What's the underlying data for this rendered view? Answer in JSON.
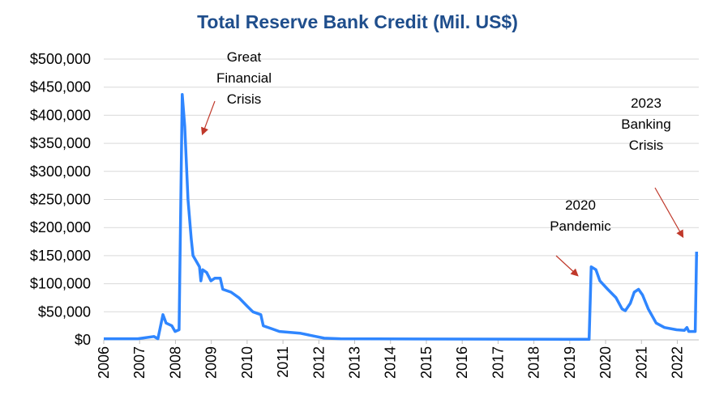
{
  "chart_data": {
    "type": "line",
    "title": "Total Reserve Bank Credit (Mil. US$)",
    "x": [
      2006.0,
      2006.95,
      2007.4,
      2007.51,
      2007.65,
      2007.74,
      2007.9,
      2007.99,
      2008.1,
      2008.19,
      2008.26,
      2008.35,
      2008.44,
      2008.49,
      2008.58,
      2008.67,
      2008.71,
      2008.76,
      2008.87,
      2008.99,
      2009.1,
      2009.25,
      2009.32,
      2009.55,
      2009.77,
      2010.0,
      2010.16,
      2010.38,
      2010.45,
      2010.68,
      2010.9,
      2011.47,
      2011.92,
      2012.15,
      2012.6,
      2018.93,
      2019.54,
      2019.6,
      2019.73,
      2019.84,
      2020.06,
      2020.29,
      2020.46,
      2020.55,
      2020.69,
      2020.8,
      2020.92,
      2021.03,
      2021.19,
      2021.41,
      2021.64,
      2021.98,
      2022.2,
      2022.27,
      2022.32,
      2022.5,
      2022.54
    ],
    "values": [
      2000,
      2000,
      6000,
      2000,
      45000,
      30000,
      25000,
      15000,
      18000,
      437000,
      380000,
      250000,
      180000,
      150000,
      140000,
      130000,
      105000,
      125000,
      120000,
      105000,
      110000,
      110000,
      90000,
      85000,
      75000,
      60000,
      50000,
      45000,
      25000,
      20000,
      15000,
      12000,
      6000,
      3000,
      2000,
      1000,
      1000,
      130000,
      125000,
      105000,
      90000,
      75000,
      55000,
      52000,
      65000,
      85000,
      90000,
      80000,
      55000,
      30000,
      22000,
      18000,
      17000,
      22000,
      15000,
      15000,
      157000
    ],
    "color": "#2f86ff",
    "xlim": [
      2006,
      2022.6
    ],
    "xticks": [
      2006,
      2007,
      2008,
      2009,
      2010,
      2011,
      2012,
      2013,
      2014,
      2015,
      2016,
      2017,
      2018,
      2019,
      2020,
      2021,
      2022
    ],
    "ylim": [
      0,
      500000
    ],
    "yticks": [
      {
        "value": 0,
        "label": "$0"
      },
      {
        "value": 50000,
        "label": "$50,000"
      },
      {
        "value": 100000,
        "label": "$100,000"
      },
      {
        "value": 150000,
        "label": "$150,000"
      },
      {
        "value": 200000,
        "label": "$200,000"
      },
      {
        "value": 250000,
        "label": "$250,000"
      },
      {
        "value": 300000,
        "label": "$300,000"
      },
      {
        "value": 350000,
        "label": "$350,000"
      },
      {
        "value": 400000,
        "label": "$400,000"
      },
      {
        "value": 450000,
        "label": "$450,000"
      },
      {
        "value": 500000,
        "label": "$500,000"
      }
    ],
    "grid": true,
    "annotations": [
      {
        "lines": [
          "Great",
          "Financial",
          "Crisis"
        ]
      },
      {
        "lines": [
          "2020",
          "Pandemic"
        ]
      },
      {
        "lines": [
          "2023",
          "Banking",
          "Crisis"
        ]
      }
    ]
  }
}
